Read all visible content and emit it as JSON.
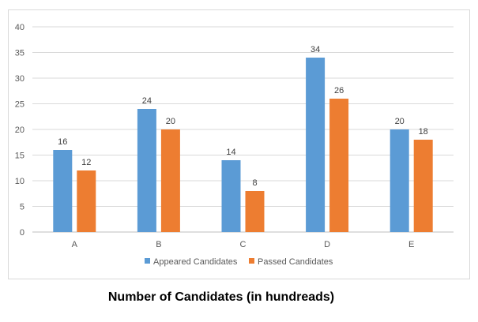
{
  "chart_data": {
    "type": "bar",
    "title": "Number of Candidates (in hundreads)",
    "categories": [
      "A",
      "B",
      "C",
      "D",
      "E"
    ],
    "series": [
      {
        "name": "Appeared Candidates",
        "values": [
          16,
          24,
          14,
          34,
          20
        ],
        "color": "#5b9bd5"
      },
      {
        "name": "Passed Candidates",
        "values": [
          12,
          20,
          8,
          26,
          18
        ],
        "color": "#ed7d31"
      }
    ],
    "ylim": [
      0,
      40
    ],
    "yticks": [
      0,
      5,
      10,
      15,
      20,
      25,
      30,
      35,
      40
    ],
    "grid": true,
    "legend": "bottom",
    "data_labels": true
  }
}
